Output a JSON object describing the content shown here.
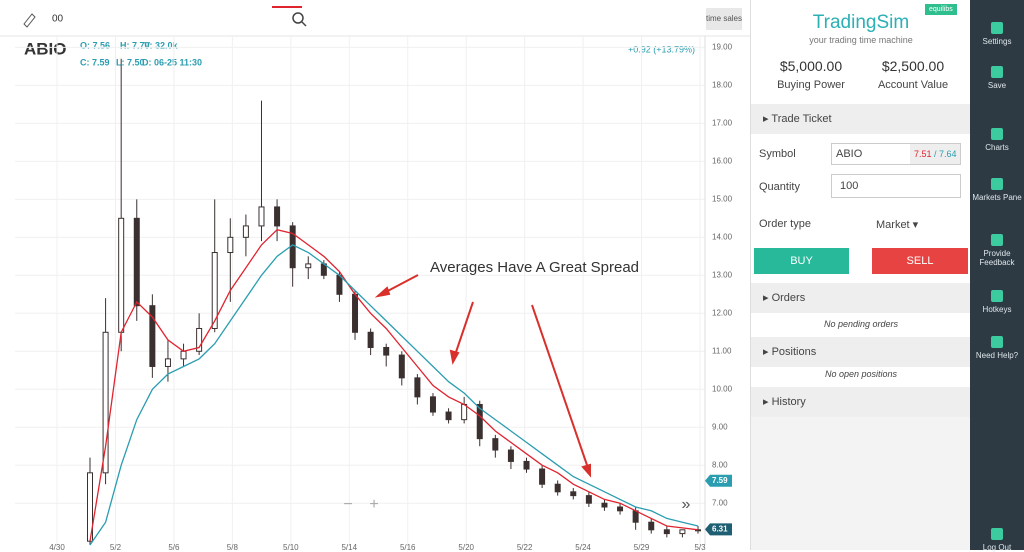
{
  "toolbar": {
    "search": "00",
    "button": "time sales"
  },
  "chart": {
    "symbol": "ABIO",
    "ohlc": [
      "O: 7.56",
      "H: 7.70",
      "V: 32.0k",
      "C: 7.59",
      "L: 7.50",
      "D: 06-25 11:30"
    ],
    "change": "+0.92 (+13.79%)",
    "annotation": "Averages Have A Great Spread",
    "ylim": [
      5.9,
      19.3
    ],
    "yticks": [
      {
        "value": 7,
        "label": "7.00"
      },
      {
        "value": 8,
        "label": "8.00"
      },
      {
        "value": 9,
        "label": "9.00"
      },
      {
        "value": 10,
        "label": "10.00"
      },
      {
        "value": 11,
        "label": "11.00"
      },
      {
        "value": 12,
        "label": "12.00"
      },
      {
        "value": 13,
        "label": "13.00"
      },
      {
        "value": 14,
        "label": "14.00"
      },
      {
        "value": 15,
        "label": "15.00"
      },
      {
        "value": 16,
        "label": "16.00"
      },
      {
        "value": 17,
        "label": "17.00"
      },
      {
        "value": 18,
        "label": "18.00"
      },
      {
        "value": 19,
        "label": "19.00"
      }
    ],
    "xlabels": [
      "4/30",
      "5/2",
      "5/6",
      "5/8",
      "5/10",
      "5/14",
      "5/16",
      "5/20",
      "5/22",
      "5/24",
      "5/29",
      "5/3"
    ],
    "candle_color": "#3b3030",
    "candles": {
      "open": [
        6.0,
        7.8,
        11.5,
        14.5,
        12.2,
        10.6,
        10.8,
        11.0,
        11.6,
        13.6,
        14.0,
        14.3,
        14.8,
        14.3,
        13.2,
        13.3,
        13.0,
        12.5,
        11.5,
        11.1,
        10.9,
        10.3,
        9.8,
        9.4,
        9.2,
        9.6,
        8.7,
        8.4,
        8.1,
        7.9,
        7.5,
        7.3,
        7.2,
        7.0,
        6.9,
        6.8,
        6.5,
        6.3,
        6.2,
        6.3
      ],
      "high": [
        8.2,
        12.4,
        18.7,
        15.0,
        12.5,
        11.3,
        11.2,
        12.0,
        15.0,
        14.5,
        14.6,
        17.6,
        15.0,
        14.4,
        13.5,
        13.4,
        13.1,
        12.6,
        11.6,
        11.2,
        11.0,
        10.4,
        9.9,
        9.5,
        9.8,
        9.7,
        8.8,
        8.5,
        8.2,
        8.0,
        7.6,
        7.4,
        7.3,
        7.1,
        7.0,
        6.9,
        6.6,
        6.4,
        6.3,
        6.4
      ],
      "low": [
        5.9,
        7.5,
        11.0,
        11.8,
        10.3,
        10.2,
        10.6,
        10.9,
        11.5,
        12.3,
        13.5,
        13.9,
        13.9,
        12.7,
        12.9,
        12.9,
        12.3,
        11.3,
        10.9,
        10.6,
        10.1,
        9.6,
        9.3,
        9.1,
        9.1,
        8.5,
        8.2,
        7.9,
        7.8,
        7.4,
        7.2,
        7.1,
        6.9,
        6.8,
        6.7,
        6.3,
        6.2,
        6.1,
        6.1,
        6.2
      ],
      "close": [
        7.8,
        11.5,
        14.5,
        12.2,
        10.6,
        10.8,
        11.0,
        11.6,
        13.6,
        14.0,
        14.3,
        14.8,
        14.3,
        13.2,
        13.3,
        13.0,
        12.5,
        11.5,
        11.1,
        10.9,
        10.3,
        9.8,
        9.4,
        9.2,
        9.6,
        8.7,
        8.4,
        8.1,
        7.9,
        7.5,
        7.3,
        7.2,
        7.0,
        6.9,
        6.8,
        6.5,
        6.3,
        6.2,
        6.3,
        6.3
      ]
    },
    "averages": [
      {
        "color": "#e0242f",
        "values": [
          6.0,
          8.5,
          11.5,
          12.3,
          11.9,
          11.3,
          11.0,
          11.1,
          11.8,
          12.6,
          13.2,
          13.8,
          14.2,
          14.1,
          13.8,
          13.5,
          13.1,
          12.5,
          12.0,
          11.6,
          11.1,
          10.6,
          10.1,
          9.8,
          9.6,
          9.3,
          8.9,
          8.6,
          8.3,
          8.0,
          7.8,
          7.5,
          7.3,
          7.1,
          7.0,
          6.8,
          6.6,
          6.4,
          6.35,
          6.3
        ]
      },
      {
        "color": "#2a9db0",
        "values": [
          5.9,
          6.5,
          8.0,
          9.2,
          10.0,
          10.4,
          10.6,
          10.8,
          11.2,
          11.8,
          12.4,
          13.0,
          13.5,
          13.8,
          13.6,
          13.3,
          13.0,
          12.6,
          12.2,
          11.8,
          11.4,
          11.0,
          10.6,
          10.2,
          9.9,
          9.5,
          9.2,
          8.9,
          8.6,
          8.3,
          8.0,
          7.7,
          7.5,
          7.3,
          7.1,
          6.9,
          6.8,
          6.6,
          6.5,
          6.4
        ]
      }
    ],
    "price_tags": [
      {
        "value": 7.59,
        "color": "#2a9db0"
      },
      {
        "value": 6.31,
        "color": "#1f5f73"
      }
    ]
  },
  "sidebar": {
    "brand": "TradingSim",
    "tagline": "your trading time machine",
    "badge": "equilibs",
    "buying_power": "$5,000.00",
    "buying_power_label": "Buying Power",
    "account_value": "$2,500.00",
    "account_value_label": "Account Value",
    "trade_ticket": "Trade Ticket",
    "symbol_label": "Symbol",
    "symbol": "ABIO",
    "bid": "7.51",
    "ask": "/ 7.64",
    "quantity_label": "Quantity",
    "quantity": "100",
    "order_type_label": "Order type",
    "order_type": "Market ▾",
    "buy": "BUY",
    "sell": "SELL",
    "orders": "Orders",
    "orders_empty": "No pending orders",
    "positions": "Positions",
    "positions_empty": "No open positions",
    "history": "History"
  },
  "nav": [
    "Settings",
    "Save",
    "Charts",
    "Markets Pane",
    "Provide Feedback",
    "Hotkeys",
    "Need Help?",
    "Log Out"
  ]
}
